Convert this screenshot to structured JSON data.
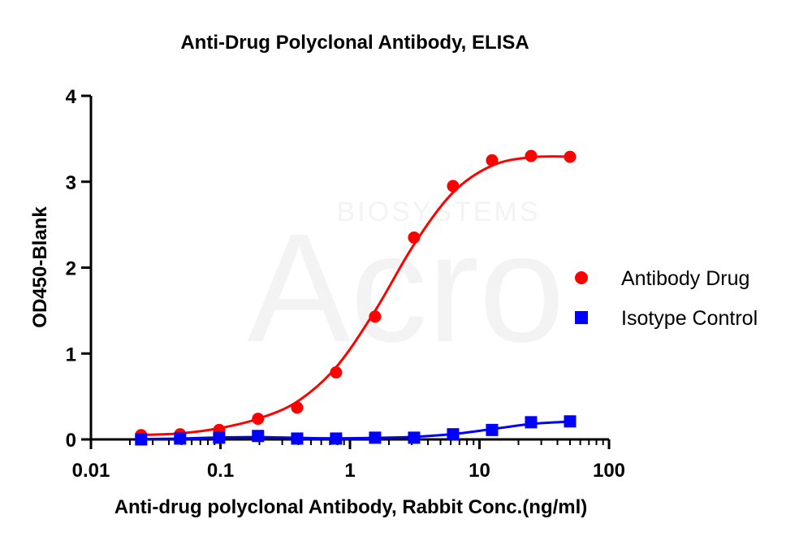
{
  "chart_data": {
    "type": "scatter",
    "title": "Anti-Drug Polyclonal Antibody, ELISA",
    "xlabel": "Anti-drug polyclonal Antibody, Rabbit Conc.(ng/ml)",
    "ylabel": "OD450-Blank",
    "xscale": "log",
    "xlim": [
      0.01,
      100
    ],
    "ylim": [
      0,
      4
    ],
    "xticks": [
      0.01,
      0.1,
      1,
      10,
      100
    ],
    "xtick_labels": [
      "0.01",
      "0.1",
      "1",
      "10",
      "100"
    ],
    "yticks": [
      0,
      1,
      2,
      3,
      4
    ],
    "ytick_labels": [
      "0",
      "1",
      "2",
      "3",
      "4"
    ],
    "grid": false,
    "legend_position": "right",
    "series": [
      {
        "name": "Antibody Drug",
        "color": "#ff0000",
        "marker": "circle",
        "fit": "sigmoidal",
        "x": [
          0.0244,
          0.0488,
          0.0977,
          0.195,
          0.391,
          0.781,
          1.5625,
          3.125,
          6.25,
          12.5,
          25,
          50
        ],
        "y": [
          0.05,
          0.06,
          0.11,
          0.24,
          0.37,
          0.78,
          1.43,
          2.35,
          2.95,
          3.25,
          3.3,
          3.29
        ]
      },
      {
        "name": "Isotype Control",
        "color": "#0000ff",
        "marker": "square",
        "fit": "sigmoidal",
        "x": [
          0.0244,
          0.0488,
          0.0977,
          0.195,
          0.391,
          0.781,
          1.5625,
          3.125,
          6.25,
          12.5,
          25,
          50
        ],
        "y": [
          0.0,
          0.01,
          0.02,
          0.04,
          0.01,
          0.01,
          0.02,
          0.02,
          0.06,
          0.11,
          0.2,
          0.21
        ]
      }
    ]
  },
  "watermark": {
    "logo_text": "Acro",
    "sub_text": "BIOSYSTEMS"
  }
}
